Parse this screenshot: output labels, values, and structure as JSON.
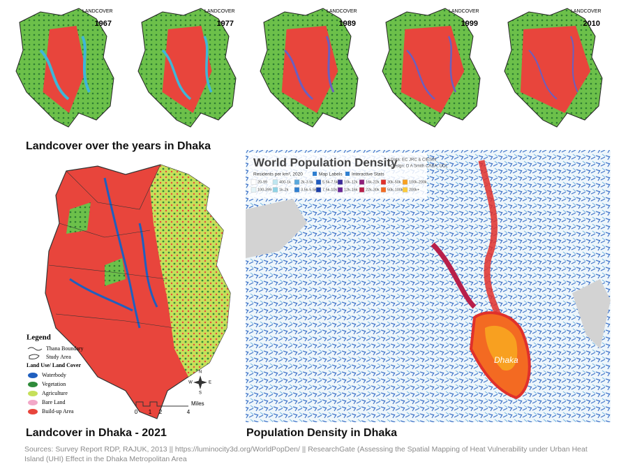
{
  "top_maps": [
    {
      "label": "LANDCOVER",
      "year": "1967"
    },
    {
      "label": "LANDCOVER",
      "year": "1977"
    },
    {
      "label": "LANDCOVER",
      "year": "1989"
    },
    {
      "label": "LANDCOVER",
      "year": "1999"
    },
    {
      "label": "LANDCOVER",
      "year": "2010"
    }
  ],
  "captions": {
    "top": "Landcover over the years in Dhaka",
    "left": "Landcover in Dhaka - 2021",
    "right": "Population Density in Dhaka"
  },
  "landcover_legend": {
    "title": "Legend",
    "boundaries": [
      "Thana Boundary",
      "Study Area"
    ],
    "subtitle": "Land Use/ Land Cover",
    "classes": [
      {
        "name": "Waterbody",
        "color": "#1f5fbf"
      },
      {
        "name": "Vegetation",
        "color": "#2e8b3a"
      },
      {
        "name": "Agriculture",
        "color": "#c6e05a"
      },
      {
        "name": "Bare Land",
        "color": "#f2a8c8"
      },
      {
        "name": "Build-up Area",
        "color": "#e8453c"
      }
    ],
    "scale": [
      "0",
      "1",
      "2",
      "4",
      "Miles"
    ],
    "compass": [
      "N",
      "S",
      "E",
      "W"
    ]
  },
  "density_map": {
    "title": "World Population Density",
    "data_credit": "Data: EC JRC & CIESIN",
    "design_credit": "Design: D A Smith CASA, UCL",
    "units": "Residents per km², 2020",
    "toggles": [
      "Map Labels",
      "Interactive Stats"
    ],
    "bins": [
      {
        "label": "20-99",
        "color": "#ffffff"
      },
      {
        "label": "100-399",
        "color": "#e4f3f7"
      },
      {
        "label": "400-1k",
        "color": "#bfe6f0"
      },
      {
        "label": "1k-2k",
        "color": "#8fd3e6"
      },
      {
        "label": "2k-3.5k",
        "color": "#5aa9dd"
      },
      {
        "label": "3.5k-5.5k",
        "color": "#2f7fd0"
      },
      {
        "label": "5.5k-7.5k",
        "color": "#1f5bbf"
      },
      {
        "label": "7.5k-10k",
        "color": "#1a3ea8"
      },
      {
        "label": "10k-12k",
        "color": "#3b2a9a"
      },
      {
        "label": "12k-16k",
        "color": "#6a2596"
      },
      {
        "label": "16k-22k",
        "color": "#8e1f7a"
      },
      {
        "label": "22k-30k",
        "color": "#b81f4a"
      },
      {
        "label": "30k-50k",
        "color": "#e0302b"
      },
      {
        "label": "50k-100k",
        "color": "#f36a22"
      },
      {
        "label": "100k-200k",
        "color": "#f8a020"
      },
      {
        "label": "200k+",
        "color": "#fccb3a"
      }
    ],
    "city": "Dhaka"
  },
  "sources": "Sources: Survey Report RDP, RAJUK, 2013 || https://luminocity3d.org/WorldPopDen/ || ResearchGate (Assessing the Spatial Mapping of Heat Vulnerability under Urban Heat Island (UHI) Effect in the Dhaka Metropolitan Area"
}
